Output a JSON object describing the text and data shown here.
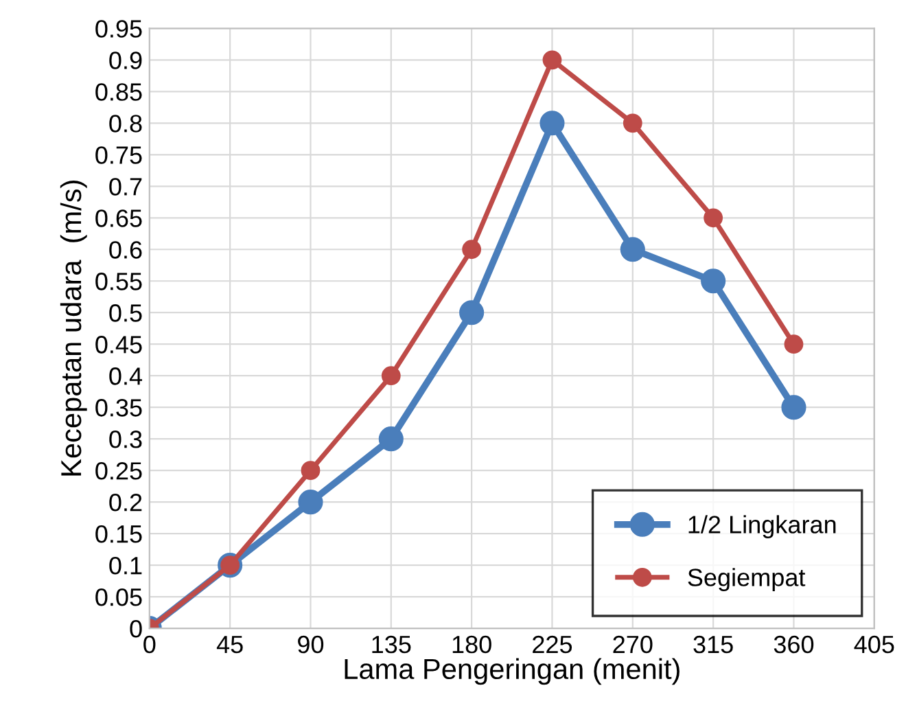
{
  "chart_data": {
    "type": "line",
    "xlabel": "Lama Pengeringan (menit)",
    "ylabel": "Kecepatan udara  (m/s)",
    "x": [
      0,
      45,
      90,
      135,
      180,
      225,
      270,
      315,
      360
    ],
    "series": [
      {
        "name": "1/2 Lingkaran",
        "color": "#4a7ebb",
        "values": [
          0,
          0.1,
          0.2,
          0.3,
          0.5,
          0.8,
          0.6,
          0.55,
          0.35
        ]
      },
      {
        "name": "Segiempat",
        "color": "#be4b48",
        "values": [
          0,
          0.1,
          0.25,
          0.4,
          0.6,
          0.9,
          0.8,
          0.65,
          0.45
        ]
      }
    ],
    "xlim": [
      0,
      405
    ],
    "xticks": [
      0,
      45,
      90,
      135,
      180,
      225,
      270,
      315,
      360,
      405
    ],
    "ylim": [
      0,
      0.95
    ],
    "yticks": [
      0,
      0.05,
      0.1,
      0.15,
      0.2,
      0.25,
      0.3,
      0.35,
      0.4,
      0.45,
      0.5,
      0.55,
      0.6,
      0.65,
      0.7,
      0.75,
      0.8,
      0.85,
      0.9,
      0.95
    ],
    "grid": true,
    "legend": "bottom right",
    "marker": "circle",
    "line_style": "solid"
  }
}
